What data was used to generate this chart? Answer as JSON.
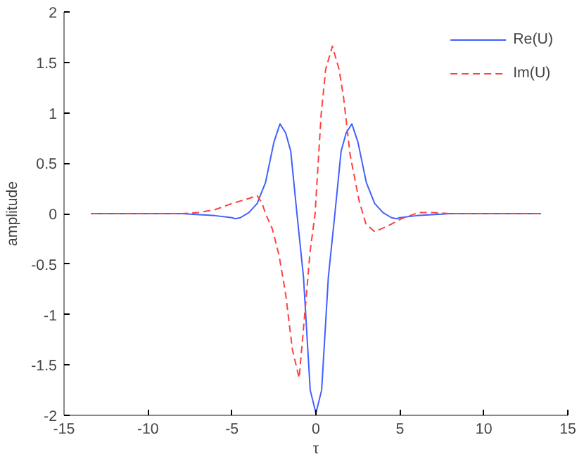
{
  "chart_data": {
    "type": "line",
    "xlabel": "τ",
    "ylabel": "amplitude",
    "xlim": [
      -15,
      15
    ],
    "ylim": [
      -2,
      2
    ],
    "xticks": [
      -15,
      -10,
      -5,
      0,
      5,
      10,
      15
    ],
    "yticks": [
      -2,
      -1.5,
      -1,
      -0.5,
      0,
      0.5,
      1,
      1.5,
      2
    ],
    "grid": false,
    "legend": "top right",
    "series": [
      {
        "name": "Re(U)",
        "color": "#4060ff",
        "line_style": "solid",
        "x": [
          -13.4,
          -10,
          -8,
          -6,
          -5,
          -4.8,
          -4.5,
          -4,
          -3.5,
          -3,
          -2.5,
          -2.14,
          -1.8,
          -1.5,
          -1.13,
          -0.74,
          -0.34,
          0,
          0.34,
          0.74,
          1.13,
          1.5,
          1.8,
          2.14,
          2.5,
          3,
          3.5,
          4,
          4.5,
          4.8,
          5,
          6,
          8,
          10,
          13.4
        ],
        "values": [
          0,
          0,
          0,
          -0.02,
          -0.04,
          -0.05,
          -0.04,
          0.01,
          0.1,
          0.31,
          0.71,
          0.89,
          0.8,
          0.62,
          0,
          -0.63,
          -1.75,
          -1.98,
          -1.75,
          -0.63,
          0,
          0.62,
          0.8,
          0.89,
          0.71,
          0.31,
          0.1,
          0.01,
          -0.04,
          -0.05,
          -0.04,
          -0.02,
          0,
          0,
          0
        ]
      },
      {
        "name": "Im(U)",
        "color": "#ff4040",
        "line_style": "dashed",
        "x": [
          -13.4,
          -8,
          -7,
          -6,
          -5,
          -4,
          -3.5,
          -3.2,
          -3,
          -2.6,
          -2.2,
          -1.8,
          -1.4,
          -1,
          -0.6,
          -0.35,
          -0.05,
          0.31,
          0.58,
          0.98,
          1.38,
          1.64,
          2.04,
          2.57,
          2.97,
          3.5,
          4.3,
          5.1,
          6.1,
          7,
          8,
          13.4
        ],
        "values": [
          0,
          0,
          0.01,
          0.04,
          0.1,
          0.15,
          0.18,
          0.1,
          0,
          -0.15,
          -0.41,
          -0.8,
          -1.35,
          -1.63,
          -0.87,
          -0.38,
          0,
          0.98,
          1.43,
          1.66,
          1.43,
          1.16,
          0.58,
          0.13,
          -0.1,
          -0.18,
          -0.12,
          -0.05,
          0.01,
          0.01,
          0,
          0
        ]
      }
    ]
  }
}
